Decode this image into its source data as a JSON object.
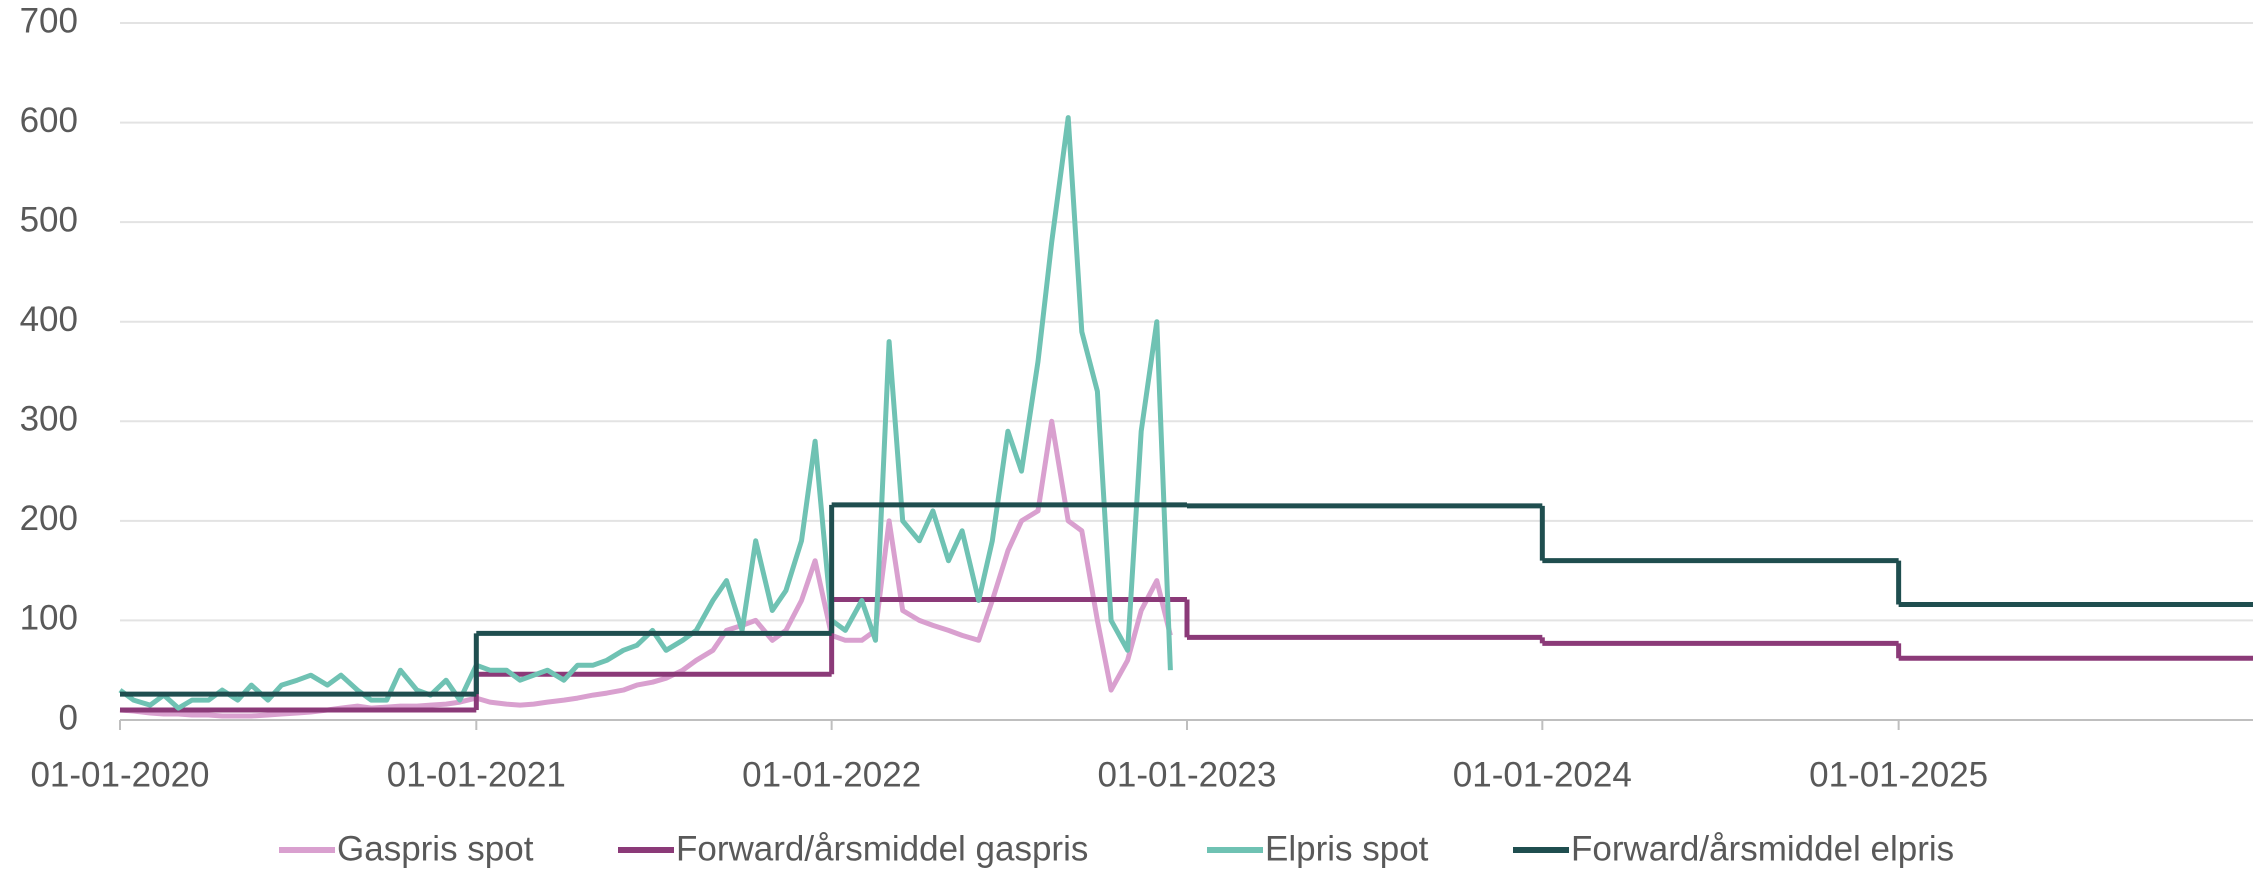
{
  "chart_data": {
    "type": "line",
    "xlim": [
      "01-01-2020",
      "31-12-2025"
    ],
    "xticks": [
      "01-01-2020",
      "01-01-2021",
      "01-01-2022",
      "01-01-2023",
      "01-01-2024",
      "01-01-2025"
    ],
    "ylim": [
      0,
      700
    ],
    "yticks": [
      0,
      100,
      200,
      300,
      400,
      500,
      600,
      700
    ],
    "grid": true,
    "legend": "bottom",
    "series": [
      {
        "name": "Gaspris spot",
        "color": "#d9a0cf",
        "x": [
          "01-01-2020",
          "15-01-2020",
          "01-02-2020",
          "15-02-2020",
          "01-03-2020",
          "15-03-2020",
          "01-04-2020",
          "15-04-2020",
          "01-05-2020",
          "15-05-2020",
          "01-06-2020",
          "15-06-2020",
          "01-07-2020",
          "15-07-2020",
          "01-08-2020",
          "15-08-2020",
          "01-09-2020",
          "15-09-2020",
          "01-10-2020",
          "15-10-2020",
          "01-11-2020",
          "15-11-2020",
          "01-12-2020",
          "15-12-2020",
          "01-01-2021",
          "15-01-2021",
          "01-02-2021",
          "15-02-2021",
          "01-03-2021",
          "15-03-2021",
          "01-04-2021",
          "15-04-2021",
          "01-05-2021",
          "15-05-2021",
          "01-06-2021",
          "15-06-2021",
          "01-07-2021",
          "15-07-2021",
          "01-08-2021",
          "15-08-2021",
          "01-09-2021",
          "15-09-2021",
          "01-10-2021",
          "15-10-2021",
          "01-11-2021",
          "15-11-2021",
          "01-12-2021",
          "15-12-2021",
          "01-01-2022",
          "15-01-2022",
          "01-02-2022",
          "15-02-2022",
          "01-03-2022",
          "15-03-2022",
          "01-04-2022",
          "15-04-2022",
          "01-05-2022",
          "15-05-2022",
          "01-06-2022",
          "15-06-2022",
          "01-07-2022",
          "15-07-2022",
          "01-08-2022",
          "15-08-2022",
          "01-09-2022",
          "15-09-2022",
          "01-10-2022",
          "15-10-2022",
          "01-11-2022",
          "15-11-2022",
          "01-12-2022",
          "15-12-2022"
        ],
        "values": [
          10,
          9,
          7,
          6,
          6,
          5,
          5,
          4,
          4,
          4,
          5,
          6,
          7,
          8,
          10,
          12,
          14,
          12,
          13,
          14,
          14,
          15,
          16,
          18,
          22,
          18,
          16,
          15,
          16,
          18,
          20,
          22,
          25,
          27,
          30,
          35,
          38,
          42,
          50,
          60,
          70,
          90,
          95,
          100,
          80,
          90,
          120,
          160,
          85,
          80,
          80,
          90,
          200,
          110,
          100,
          95,
          90,
          85,
          80,
          120,
          170,
          200,
          210,
          300,
          200,
          190,
          100,
          30,
          60,
          110,
          140,
          85
        ]
      },
      {
        "name": "Forward/årsmiddel gaspris",
        "color": "#8b3a78",
        "step": true,
        "x": [
          "01-01-2020",
          "01-01-2021",
          "01-01-2022",
          "01-01-2023",
          "01-01-2024",
          "01-01-2025"
        ],
        "values": [
          10,
          46,
          121,
          83,
          77,
          62
        ]
      },
      {
        "name": "Elpris spot",
        "color": "#6fc2b3",
        "x": [
          "01-01-2020",
          "15-01-2020",
          "01-02-2020",
          "15-02-2020",
          "01-03-2020",
          "15-03-2020",
          "01-04-2020",
          "15-04-2020",
          "01-05-2020",
          "15-05-2020",
          "01-06-2020",
          "15-06-2020",
          "01-07-2020",
          "15-07-2020",
          "01-08-2020",
          "15-08-2020",
          "01-09-2020",
          "15-09-2020",
          "01-10-2020",
          "15-10-2020",
          "01-11-2020",
          "15-11-2020",
          "01-12-2020",
          "15-12-2020",
          "01-01-2021",
          "15-01-2021",
          "01-02-2021",
          "15-02-2021",
          "01-03-2021",
          "15-03-2021",
          "01-04-2021",
          "15-04-2021",
          "01-05-2021",
          "15-05-2021",
          "01-06-2021",
          "15-06-2021",
          "01-07-2021",
          "15-07-2021",
          "01-08-2021",
          "15-08-2021",
          "01-09-2021",
          "15-09-2021",
          "01-10-2021",
          "15-10-2021",
          "01-11-2021",
          "15-11-2021",
          "01-12-2021",
          "15-12-2021",
          "01-01-2022",
          "15-01-2022",
          "01-02-2022",
          "15-02-2022",
          "01-03-2022",
          "15-03-2022",
          "01-04-2022",
          "15-04-2022",
          "01-05-2022",
          "15-05-2022",
          "01-06-2022",
          "15-06-2022",
          "01-07-2022",
          "15-07-2022",
          "01-08-2022",
          "15-08-2022",
          "01-09-2022",
          "15-09-2022",
          "01-10-2022",
          "15-10-2022",
          "01-11-2022",
          "15-11-2022",
          "01-12-2022",
          "15-12-2022"
        ],
        "values": [
          30,
          20,
          15,
          25,
          12,
          20,
          20,
          30,
          20,
          35,
          20,
          35,
          40,
          45,
          35,
          45,
          30,
          20,
          20,
          50,
          30,
          25,
          40,
          20,
          55,
          50,
          50,
          40,
          45,
          50,
          40,
          55,
          55,
          60,
          70,
          75,
          90,
          70,
          80,
          90,
          120,
          140,
          90,
          180,
          110,
          130,
          180,
          280,
          100,
          90,
          120,
          80,
          380,
          200,
          180,
          210,
          160,
          190,
          120,
          180,
          290,
          250,
          360,
          480,
          605,
          390,
          330,
          100,
          70,
          290,
          400,
          50
        ]
      },
      {
        "name": "Forward/årsmiddel elpris",
        "color": "#1f4e4f",
        "step": true,
        "x": [
          "01-01-2020",
          "01-01-2021",
          "01-01-2022",
          "01-01-2023",
          "01-01-2024",
          "01-01-2025"
        ],
        "values": [
          26,
          87,
          216,
          215,
          160,
          116
        ]
      }
    ]
  }
}
